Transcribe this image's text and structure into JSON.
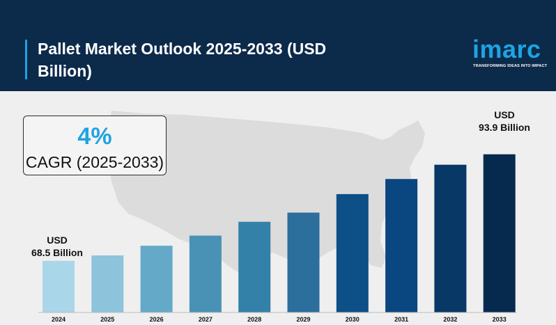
{
  "header": {
    "title": "Pallet Market Outlook 2025-2033 (USD Billion)",
    "logo_word": "imarc",
    "logo_tagline": "TRANSFORMING IDEAS INTO IMPACT"
  },
  "colors": {
    "header_bg": "#0c2a4a",
    "accent": "#1ea3e3",
    "background": "#efefef"
  },
  "cagr": {
    "value": "4%",
    "label": "CAGR (2025-2033)"
  },
  "annotations": {
    "start": {
      "currency": "USD",
      "amount": "68.5 Billion"
    },
    "end": {
      "currency": "USD",
      "amount": "93.9 Billion"
    }
  },
  "chart_data": {
    "type": "bar",
    "title": "Pallet Market Outlook 2025-2033 (USD Billion)",
    "categories": [
      "2024",
      "2025",
      "2026",
      "2027",
      "2028",
      "2029",
      "2030",
      "2031",
      "2032",
      "2033"
    ],
    "values": [
      68.5,
      69.8,
      72.1,
      74.5,
      77.8,
      80.0,
      84.4,
      88.0,
      91.4,
      93.9
    ],
    "ylim": [
      56.2,
      96
    ],
    "grid": false,
    "legend": "none",
    "bar_colors": [
      "#a9d6e8",
      "#8dc4db",
      "#65a9c9",
      "#4992b6",
      "#3381a8",
      "#2c6e9c",
      "#0d4f87",
      "#0a4680",
      "#083865",
      "#062a4d"
    ]
  }
}
